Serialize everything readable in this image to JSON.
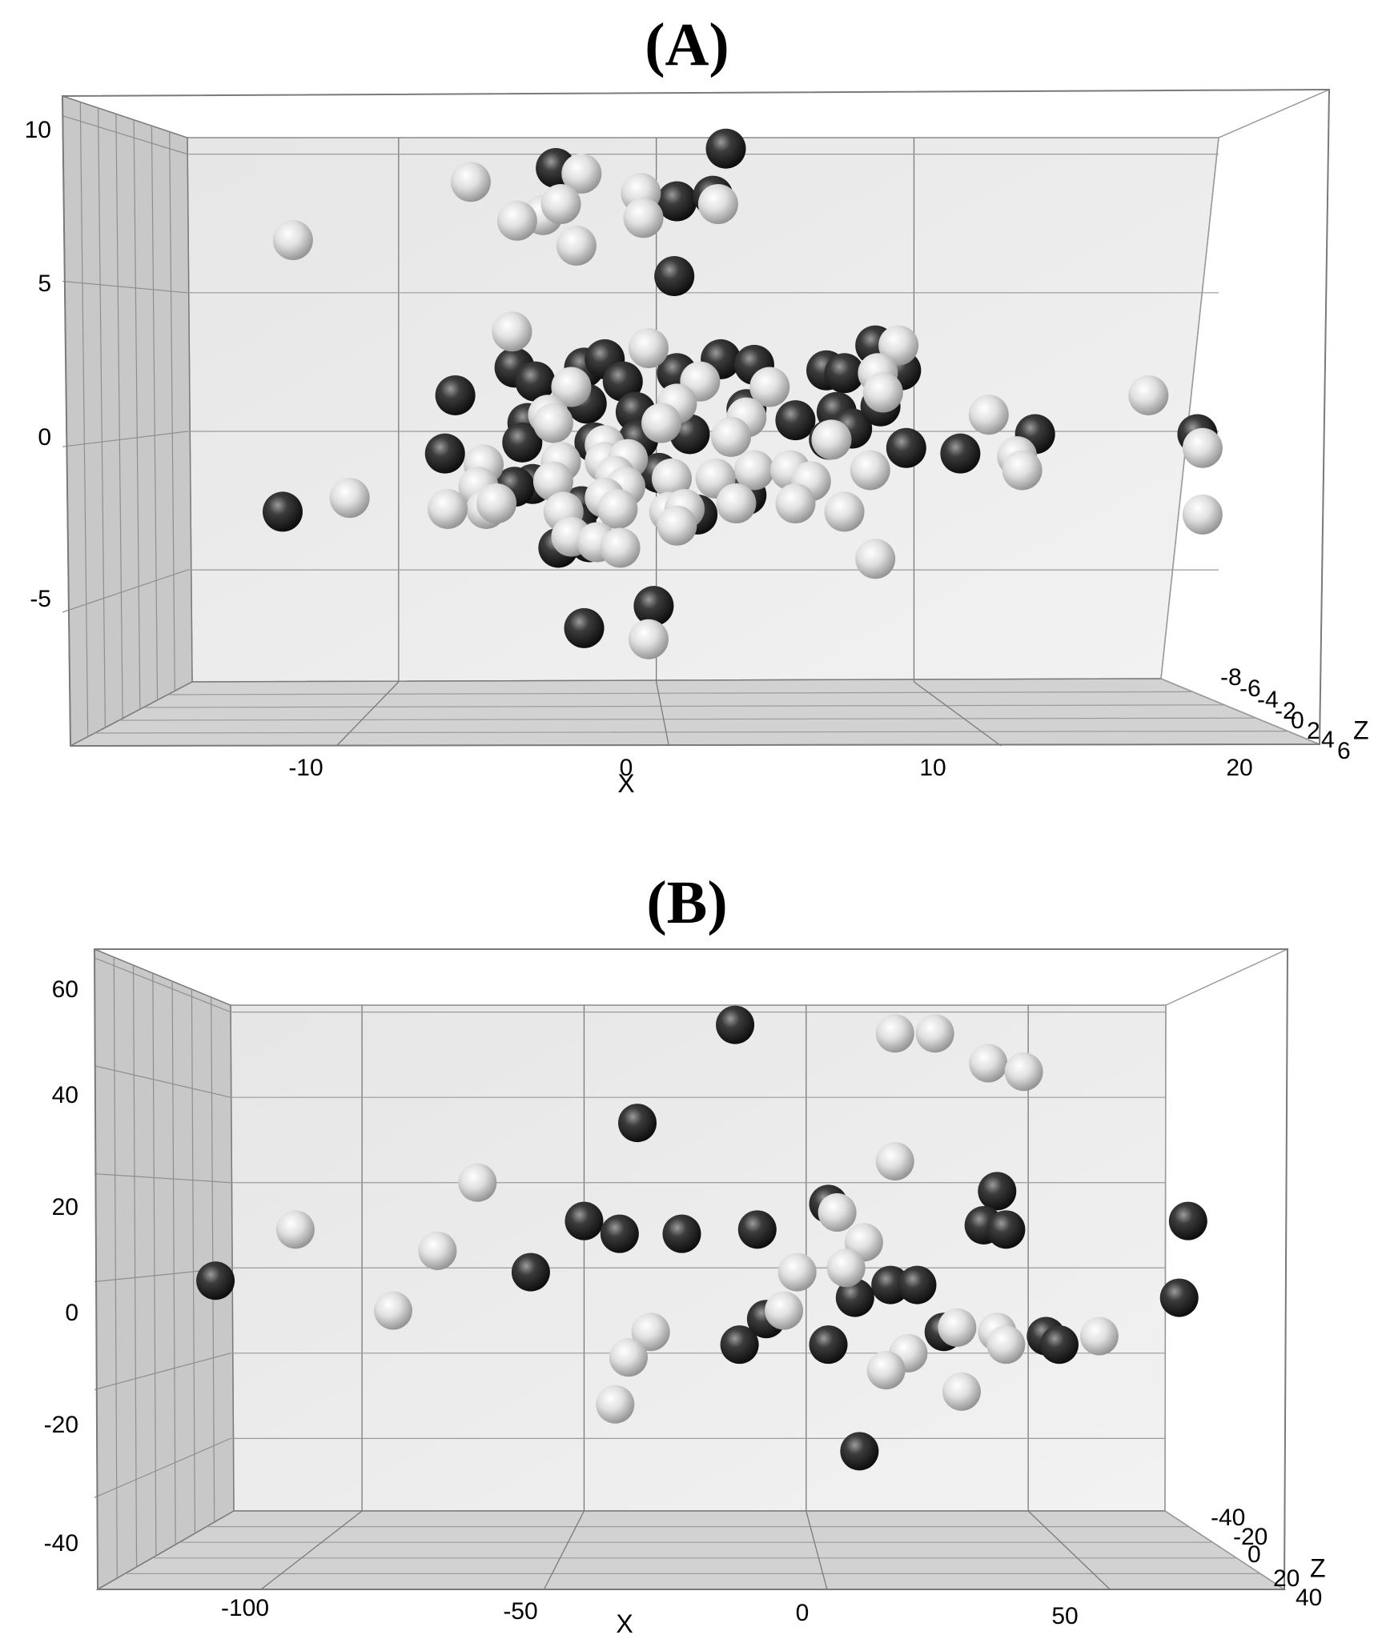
{
  "chart_data": [
    {
      "type": "scatter",
      "panel_label": "(A)",
      "dimensions": 3,
      "xlabel": "X",
      "ylabel": "",
      "zlabel": "Z",
      "xlim": [
        -20,
        24
      ],
      "ylim": [
        -9.5,
        11
      ],
      "zlim": [
        -8,
        6
      ],
      "x_ticks": [
        "-10",
        "0",
        "10",
        "20"
      ],
      "y_ticks": [
        "10",
        "5",
        "0",
        "-5"
      ],
      "z_ticks": [
        "-8",
        "-6",
        "-4",
        "-2",
        "0",
        "2",
        "4",
        "6"
      ],
      "grid": true,
      "colors": {
        "dark": "#1e1e1e",
        "light": "#d8d8d8"
      },
      "series": [
        {
          "color": "dark",
          "points": [
            [
              -3.9,
              9.5
            ],
            [
              2.7,
              10.2
            ],
            [
              0.8,
              8.3
            ],
            [
              2.2,
              8.5
            ],
            [
              0.7,
              5.6
            ],
            [
              -7.8,
              1.3
            ],
            [
              -5.5,
              2.3
            ],
            [
              -4.7,
              1.8
            ],
            [
              -2.8,
              2.3
            ],
            [
              -2.0,
              2.6
            ],
            [
              -1.3,
              1.8
            ],
            [
              0.8,
              2.1
            ],
            [
              2.5,
              2.6
            ],
            [
              3.8,
              2.4
            ],
            [
              6.6,
              2.2
            ],
            [
              7.3,
              2.1
            ],
            [
              8.5,
              3.1
            ],
            [
              9.5,
              2.2
            ],
            [
              -5.0,
              0.3
            ],
            [
              -2.7,
              1.0
            ],
            [
              -0.8,
              0.7
            ],
            [
              3.5,
              0.8
            ],
            [
              5.4,
              0.4
            ],
            [
              7.0,
              0.7
            ],
            [
              7.6,
              0.1
            ],
            [
              8.7,
              0.9
            ],
            [
              -5.2,
              -0.4
            ],
            [
              -2.4,
              -0.4
            ],
            [
              -0.7,
              -0.3
            ],
            [
              1.3,
              -0.1
            ],
            [
              6.7,
              -0.3
            ],
            [
              9.7,
              -0.6
            ],
            [
              11.8,
              -0.8
            ],
            [
              14.7,
              -0.1
            ],
            [
              21.0,
              -0.1
            ],
            [
              -8.2,
              -0.8
            ],
            [
              -4.8,
              -1.9
            ],
            [
              -5.5,
              -2.0
            ],
            [
              0.1,
              -1.5
            ],
            [
              -2.9,
              -2.7
            ],
            [
              3.5,
              -2.3
            ],
            [
              -3.1,
              -3.3
            ],
            [
              1.6,
              -3.0
            ],
            [
              -3.8,
              -4.2
            ],
            [
              -2.6,
              -4.0
            ],
            [
              -14.5,
              -2.9
            ],
            [
              -2.8,
              -7.1
            ],
            [
              -0.1,
              -6.3
            ]
          ]
        },
        {
          "color": "light",
          "points": [
            [
              -14.1,
              6.9
            ],
            [
              -7.2,
              9.0
            ],
            [
              -2.9,
              9.3
            ],
            [
              -0.6,
              8.6
            ],
            [
              -4.4,
              7.8
            ],
            [
              -5.4,
              7.6
            ],
            [
              -3.7,
              8.2
            ],
            [
              -0.5,
              7.7
            ],
            [
              -3.1,
              6.7
            ],
            [
              2.4,
              8.2
            ],
            [
              -5.6,
              3.6
            ],
            [
              -0.3,
              3.0
            ],
            [
              9.4,
              3.1
            ],
            [
              19.1,
              1.3
            ],
            [
              8.6,
              2.1
            ],
            [
              1.7,
              1.8
            ],
            [
              4.4,
              1.6
            ],
            [
              8.8,
              1.4
            ],
            [
              -3.3,
              1.6
            ],
            [
              -4.2,
              0.6
            ],
            [
              0.8,
              1.0
            ],
            [
              3.5,
              0.5
            ],
            [
              12.9,
              0.6
            ],
            [
              -4.0,
              0.3
            ],
            [
              -2.0,
              -0.5
            ],
            [
              0.2,
              0.3
            ],
            [
              2.9,
              -0.2
            ],
            [
              6.8,
              -0.3
            ],
            [
              14.0,
              -0.9
            ],
            [
              21.2,
              -0.6
            ],
            [
              -6.7,
              -1.2
            ],
            [
              -3.7,
              -1.1
            ],
            [
              -2.0,
              -1.1
            ],
            [
              -1.1,
              -1.0
            ],
            [
              3.8,
              -1.4
            ],
            [
              5.2,
              -1.4
            ],
            [
              8.3,
              -1.4
            ],
            [
              14.2,
              -1.4
            ],
            [
              -1.6,
              -1.6
            ],
            [
              0.6,
              -1.7
            ],
            [
              -6.9,
              -2.0
            ],
            [
              -4.0,
              -1.8
            ],
            [
              -1.2,
              -2.0
            ],
            [
              2.3,
              -1.7
            ],
            [
              6.0,
              -1.8
            ],
            [
              -11.9,
              -2.4
            ],
            [
              -6.6,
              -2.8
            ],
            [
              -6.2,
              -2.6
            ],
            [
              -2.0,
              -2.4
            ],
            [
              -1.5,
              -2.8
            ],
            [
              0.5,
              -2.9
            ],
            [
              1.1,
              -2.8
            ],
            [
              3.1,
              -2.6
            ],
            [
              -8.1,
              -2.8
            ],
            [
              -3.6,
              -2.9
            ],
            [
              0.8,
              -3.4
            ],
            [
              5.4,
              -2.6
            ],
            [
              7.3,
              -2.9
            ],
            [
              21.2,
              -3.0
            ],
            [
              -3.3,
              -3.8
            ],
            [
              -2.3,
              -4.0
            ],
            [
              -1.4,
              -4.2
            ],
            [
              8.5,
              -4.6
            ],
            [
              -0.3,
              -7.5
            ]
          ]
        }
      ]
    },
    {
      "type": "scatter",
      "panel_label": "(B)",
      "dimensions": 3,
      "xlabel": "X",
      "ylabel": "",
      "zlabel": "Z",
      "xlim": [
        -135,
        90
      ],
      "ylim": [
        -48,
        68
      ],
      "zlim": [
        -40,
        40
      ],
      "x_ticks": [
        "-100",
        "-50",
        "0",
        "50"
      ],
      "y_ticks": [
        "60",
        "40",
        "20",
        "0",
        "-20",
        "-40"
      ],
      "z_ticks": [
        "-40",
        "-20",
        "0",
        "20",
        "40"
      ],
      "grid": true,
      "colors": {
        "dark": "#1e1e1e",
        "light": "#d8d8d8"
      },
      "series": [
        {
          "color": "dark",
          "points": [
            [
              -16,
              57
            ],
            [
              -38,
              34
            ],
            [
              43,
              18
            ],
            [
              86,
              11
            ],
            [
              -50,
              11
            ],
            [
              -42,
              8
            ],
            [
              -28,
              8
            ],
            [
              -11,
              9
            ],
            [
              40,
              10
            ],
            [
              45,
              9
            ],
            [
              -62,
              -1
            ],
            [
              5,
              15
            ],
            [
              -133,
              -3
            ],
            [
              19,
              -4
            ],
            [
              25,
              -4
            ],
            [
              11,
              -7
            ],
            [
              84,
              -7
            ],
            [
              -9,
              -12
            ],
            [
              -15,
              -18
            ],
            [
              5,
              -18
            ],
            [
              31,
              -15
            ],
            [
              54,
              -16
            ],
            [
              57,
              -18
            ],
            [
              12,
              -43
            ]
          ]
        },
        {
          "color": "light",
          "points": [
            [
              20,
              55
            ],
            [
              29,
              55
            ],
            [
              41,
              48
            ],
            [
              49,
              46
            ],
            [
              20,
              25
            ],
            [
              -74,
              20
            ],
            [
              -115,
              9
            ],
            [
              -83,
              4
            ],
            [
              7,
              13
            ],
            [
              13,
              6
            ],
            [
              9,
              0
            ],
            [
              -2,
              -1
            ],
            [
              -93,
              -10
            ],
            [
              -5,
              -10
            ],
            [
              -35,
              -15
            ],
            [
              -40,
              -21
            ],
            [
              34,
              -14
            ],
            [
              43,
              -15
            ],
            [
              45,
              -18
            ],
            [
              66,
              -16
            ],
            [
              23,
              -20
            ],
            [
              18,
              -24
            ],
            [
              35,
              -29
            ],
            [
              -43,
              -32
            ]
          ]
        }
      ]
    }
  ]
}
